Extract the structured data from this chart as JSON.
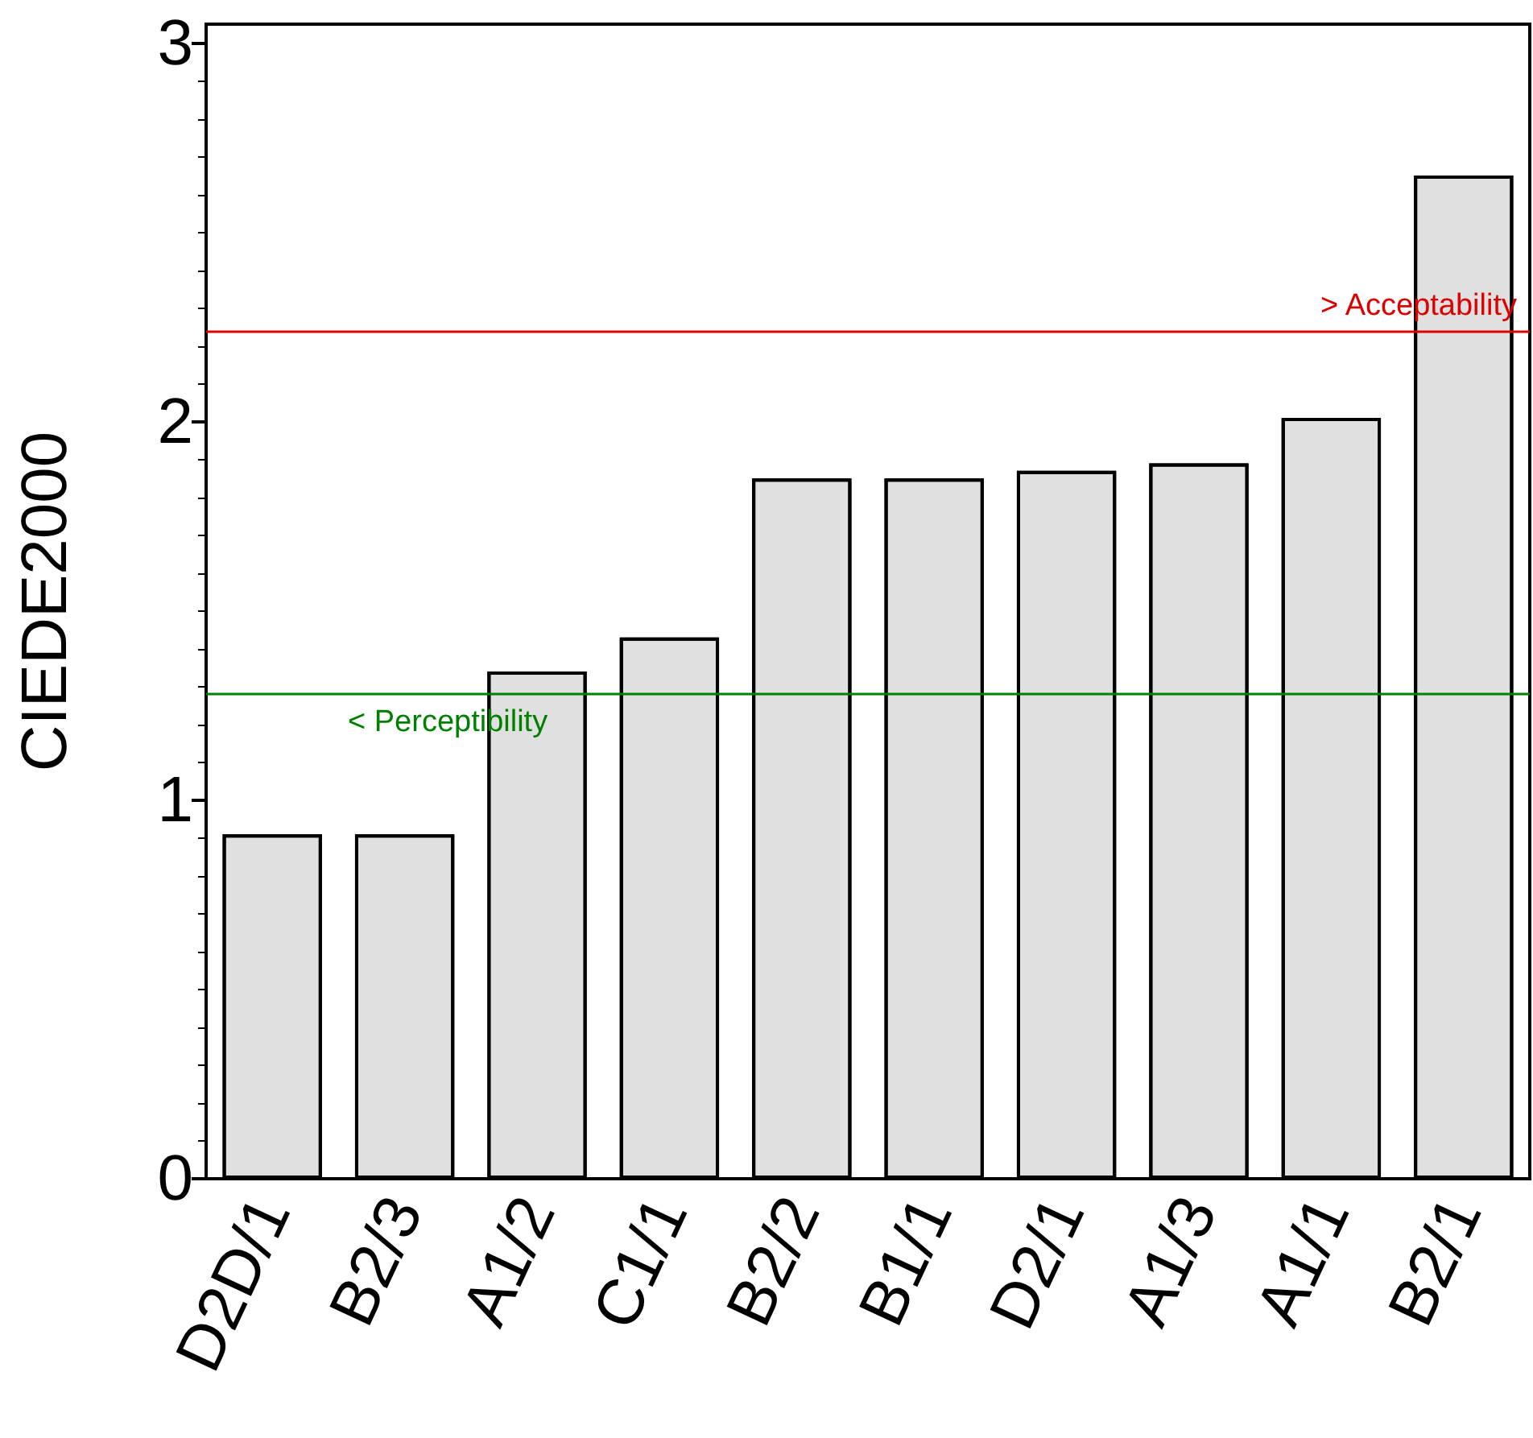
{
  "chart_data": {
    "type": "bar",
    "ylabel": "CIEDE2000",
    "categories": [
      "D2D/1",
      "B2/3",
      "A1/2",
      "C1/1",
      "B2/2",
      "B1/1",
      "D2/1",
      "A1/3",
      "A1/1",
      "B2/1"
    ],
    "values": [
      0.91,
      0.91,
      1.34,
      1.43,
      1.85,
      1.85,
      1.87,
      1.89,
      2.01,
      2.65
    ],
    "color": "#e0e0e0",
    "ylim": [
      0,
      3.05
    ],
    "yticks": [
      0,
      1,
      2,
      3
    ],
    "grid": false,
    "ref_lines": [
      {
        "axis": "y",
        "value": 2.24,
        "label": "> Acceptability",
        "color": "#dd0000"
      },
      {
        "axis": "y",
        "value": 1.28,
        "label": "< Perceptibility",
        "color": "#008000"
      }
    ]
  }
}
